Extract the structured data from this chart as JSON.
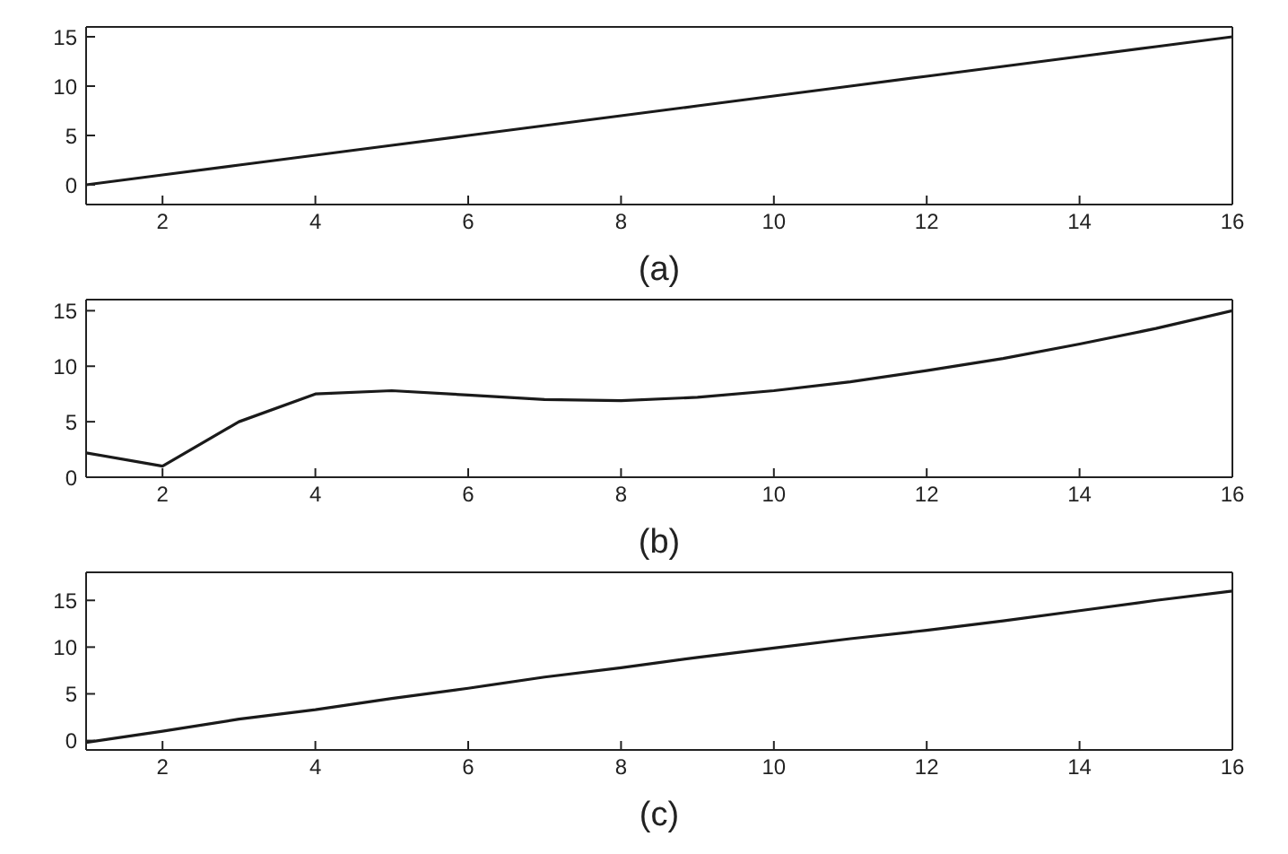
{
  "chart_data": [
    {
      "type": "line",
      "xlabel": "(a)",
      "x": [
        1,
        2,
        3,
        4,
        5,
        6,
        7,
        8,
        9,
        10,
        11,
        12,
        13,
        14,
        15,
        16
      ],
      "series": [
        {
          "color": "#1a1a1a",
          "values": [
            0,
            1,
            2,
            3,
            4,
            5,
            6,
            7,
            8,
            9,
            10,
            11,
            12,
            13,
            14,
            15
          ]
        }
      ],
      "xlim": [
        1,
        16
      ],
      "xticks": [
        2,
        4,
        6,
        8,
        10,
        12,
        14,
        16
      ],
      "ylim": [
        -2,
        16
      ],
      "yticks": [
        0,
        5,
        10,
        15
      ],
      "grid": false,
      "legend": false,
      "marker": "none"
    },
    {
      "type": "line",
      "xlabel": "(b)",
      "x": [
        1,
        2,
        3,
        4,
        5,
        6,
        7,
        8,
        9,
        10,
        11,
        12,
        13,
        14,
        15,
        16
      ],
      "series": [
        {
          "color": "#1a1a1a",
          "values": [
            2.2,
            1,
            5,
            7.5,
            7.8,
            7.4,
            7,
            6.9,
            7.2,
            7.8,
            8.6,
            9.6,
            10.7,
            12,
            13.4,
            15
          ]
        }
      ],
      "xlim": [
        1,
        16
      ],
      "xticks": [
        2,
        4,
        6,
        8,
        10,
        12,
        14,
        16
      ],
      "ylim": [
        0,
        16
      ],
      "yticks": [
        0,
        5,
        10,
        15
      ],
      "grid": false,
      "legend": false,
      "marker": "none"
    },
    {
      "type": "line",
      "xlabel": "(c)",
      "x": [
        1,
        2,
        3,
        4,
        5,
        6,
        7,
        8,
        9,
        10,
        11,
        12,
        13,
        14,
        15,
        16
      ],
      "series": [
        {
          "color": "#1a1a1a",
          "values": [
            -0.2,
            1,
            2.3,
            3.3,
            4.5,
            5.6,
            6.8,
            7.8,
            8.9,
            9.9,
            10.9,
            11.8,
            12.8,
            13.9,
            15,
            16
          ]
        }
      ],
      "xlim": [
        1,
        16
      ],
      "xticks": [
        2,
        4,
        6,
        8,
        10,
        12,
        14,
        16
      ],
      "ylim": [
        -1,
        18
      ],
      "yticks": [
        0,
        5,
        10,
        15
      ],
      "grid": false,
      "legend": false,
      "marker": "none"
    }
  ]
}
